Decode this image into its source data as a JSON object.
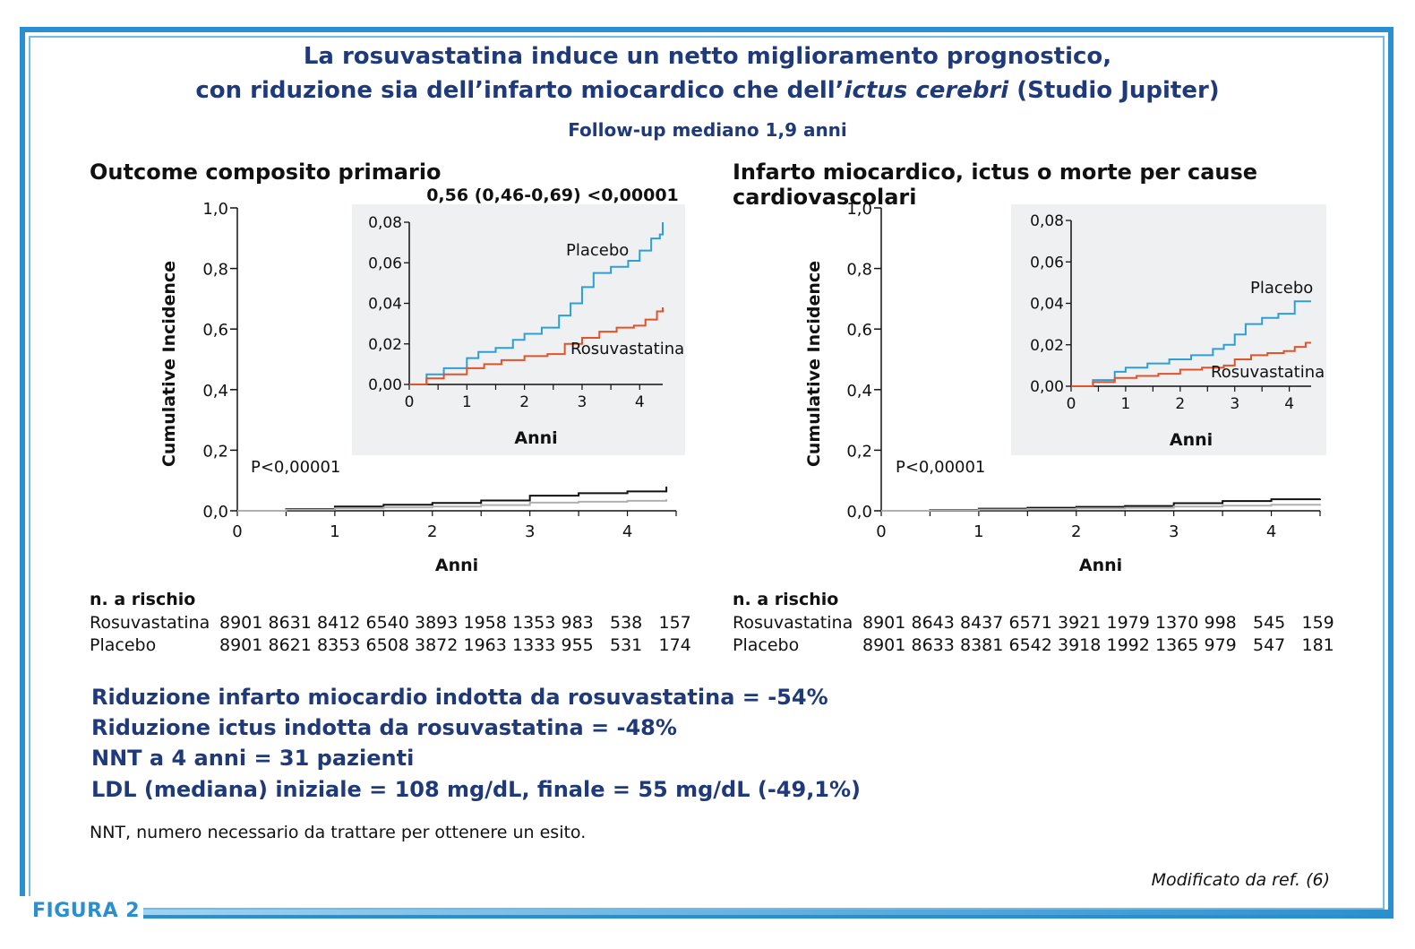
{
  "title_line1": "La rosuvastatina induce un netto miglioramento prognostico,",
  "title_line2_a": "con riduzione sia dell’infarto miocardico che dell’",
  "title_line2_italic": "ictus cerebri",
  "title_line2_b": " (Studio Jupiter)",
  "subtitle": "Follow-up mediano 1,9 anni",
  "figure_label": "FIGURA 2",
  "source_note": "Modificato da ref. (6)",
  "footnote": "NNT, numero necessario da trattare per ottenere un esito.",
  "summary": [
    "Riduzione infarto miocardio indotta da rosuvastatina = -54%",
    "Riduzione ictus indotta da rosuvastatina = -48%",
    "NNT a 4 anni = 31 pazienti",
    "LDL (mediana) iniziale = 108 mg/dL, finale = 55 mg/dL (-49,1%)"
  ],
  "colors": {
    "title": "#1f3a7a",
    "frame": "#2a8fd0",
    "placebo_inset": "#2e9fd6",
    "rosu_inset": "#e2532a",
    "placebo_main": "#111111",
    "rosu_main": "#b0b0b0"
  },
  "chart_data": [
    {
      "type": "line",
      "title": "Outcome composito primario",
      "xlabel": "Anni",
      "ylabel": "Cumulative Incidence",
      "x_ticks": [
        "0",
        "1",
        "2",
        "3",
        "4"
      ],
      "y_ticks": [
        "0,0",
        "0,2",
        "0,4",
        "0,6",
        "0,8",
        "1,0"
      ],
      "xlim": [
        0,
        4.5
      ],
      "ylim": [
        0,
        1.0
      ],
      "p_value": "P<0,00001",
      "series": [
        {
          "name": "Placebo",
          "x": [
            0,
            0.5,
            1,
            1.5,
            2,
            2.5,
            3,
            3.5,
            4,
            4.4
          ],
          "y": [
            0,
            0.006,
            0.014,
            0.02,
            0.026,
            0.034,
            0.05,
            0.058,
            0.064,
            0.08
          ]
        },
        {
          "name": "Rosuvastatina",
          "x": [
            0,
            0.5,
            1,
            1.5,
            2,
            2.5,
            3,
            3.5,
            4,
            4.4
          ],
          "y": [
            0,
            0.004,
            0.008,
            0.011,
            0.014,
            0.019,
            0.027,
            0.03,
            0.033,
            0.038
          ]
        }
      ],
      "inset": {
        "title": "0,56 (0,46-0,69) <0,00001",
        "xlabel": "Anni",
        "x_ticks": [
          "0",
          "1",
          "2",
          "3",
          "4"
        ],
        "y_ticks": [
          "0,00",
          "0,02",
          "0,04",
          "0,06",
          "0,08"
        ],
        "xlim": [
          0,
          4.4
        ],
        "ylim": [
          0,
          0.08
        ],
        "series": [
          {
            "name": "Placebo",
            "x": [
              0,
              0.3,
              0.6,
              1.0,
              1.2,
              1.5,
              1.8,
              2.0,
              2.3,
              2.6,
              2.8,
              3.0,
              3.2,
              3.5,
              3.8,
              4.0,
              4.2,
              4.35,
              4.4
            ],
            "y": [
              0,
              0.005,
              0.008,
              0.013,
              0.016,
              0.018,
              0.022,
              0.025,
              0.028,
              0.034,
              0.04,
              0.048,
              0.055,
              0.058,
              0.061,
              0.066,
              0.072,
              0.074,
              0.08
            ]
          },
          {
            "name": "Rosuvastatina",
            "x": [
              0,
              0.3,
              0.6,
              1.0,
              1.3,
              1.6,
              2.0,
              2.4,
              2.7,
              3.0,
              3.3,
              3.6,
              3.9,
              4.1,
              4.3,
              4.4
            ],
            "y": [
              0,
              0.003,
              0.005,
              0.008,
              0.01,
              0.012,
              0.014,
              0.015,
              0.02,
              0.023,
              0.026,
              0.028,
              0.029,
              0.032,
              0.036,
              0.038
            ]
          }
        ]
      },
      "risk_table": {
        "header": "n. a rischio",
        "rows": [
          {
            "label": "Rosuvastatina",
            "values": [
              "8901",
              "8631",
              "8412",
              "6540",
              "3893",
              "1958",
              "1353",
              "983",
              "538",
              "157"
            ]
          },
          {
            "label": "Placebo",
            "values": [
              "8901",
              "8621",
              "8353",
              "6508",
              "3872",
              "1963",
              "1333",
              "955",
              "531",
              "174"
            ]
          }
        ]
      }
    },
    {
      "type": "line",
      "title": "Infarto miocardico, ictus o morte per cause cardiovascolari",
      "xlabel": "Anni",
      "ylabel": "Cumulative Incidence",
      "x_ticks": [
        "0",
        "1",
        "2",
        "3",
        "4"
      ],
      "y_ticks": [
        "0,0",
        "0,2",
        "0,4",
        "0,6",
        "0,8",
        "1,0"
      ],
      "xlim": [
        0,
        4.5
      ],
      "ylim": [
        0,
        1.0
      ],
      "p_value": "P<0,00001",
      "series": [
        {
          "name": "Placebo",
          "x": [
            0,
            0.5,
            1,
            1.5,
            2,
            2.5,
            3,
            3.5,
            4,
            4.5
          ],
          "y": [
            0,
            0.003,
            0.007,
            0.01,
            0.013,
            0.016,
            0.025,
            0.032,
            0.038,
            0.04
          ]
        },
        {
          "name": "Rosuvastatina",
          "x": [
            0,
            0.5,
            1,
            1.5,
            2,
            2.5,
            3,
            3.5,
            4,
            4.5
          ],
          "y": [
            0,
            0.002,
            0.004,
            0.006,
            0.008,
            0.01,
            0.014,
            0.017,
            0.02,
            0.022
          ]
        }
      ],
      "inset": {
        "title": "",
        "xlabel": "Anni",
        "x_ticks": [
          "0",
          "1",
          "2",
          "3",
          "4"
        ],
        "y_ticks": [
          "0,00",
          "0,02",
          "0,04",
          "0,06",
          "0,08"
        ],
        "xlim": [
          0,
          4.4
        ],
        "ylim": [
          0,
          0.08
        ],
        "series": [
          {
            "name": "Placebo",
            "x": [
              0,
              0.4,
              0.8,
              1.0,
              1.4,
              1.8,
              2.2,
              2.6,
              2.8,
              3.0,
              3.2,
              3.5,
              3.8,
              4.0,
              4.1,
              4.4
            ],
            "y": [
              0,
              0.003,
              0.007,
              0.009,
              0.011,
              0.013,
              0.015,
              0.018,
              0.02,
              0.025,
              0.03,
              0.033,
              0.035,
              0.035,
              0.041,
              0.041
            ]
          },
          {
            "name": "Rosuvastatina",
            "x": [
              0,
              0.4,
              0.8,
              1.2,
              1.6,
              2.0,
              2.4,
              2.8,
              3.0,
              3.3,
              3.6,
              3.9,
              4.1,
              4.3,
              4.4
            ],
            "y": [
              0,
              0.002,
              0.004,
              0.005,
              0.006,
              0.008,
              0.009,
              0.01,
              0.013,
              0.015,
              0.016,
              0.017,
              0.019,
              0.021,
              0.021
            ]
          }
        ]
      },
      "risk_table": {
        "header": "n. a rischio",
        "rows": [
          {
            "label": "Rosuvastatina",
            "values": [
              "8901",
              "8643",
              "8437",
              "6571",
              "3921",
              "1979",
              "1370",
              "998",
              "545",
              "159"
            ]
          },
          {
            "label": "Placebo",
            "values": [
              "8901",
              "8633",
              "8381",
              "6542",
              "3918",
              "1992",
              "1365",
              "979",
              "547",
              "181"
            ]
          }
        ]
      }
    }
  ]
}
